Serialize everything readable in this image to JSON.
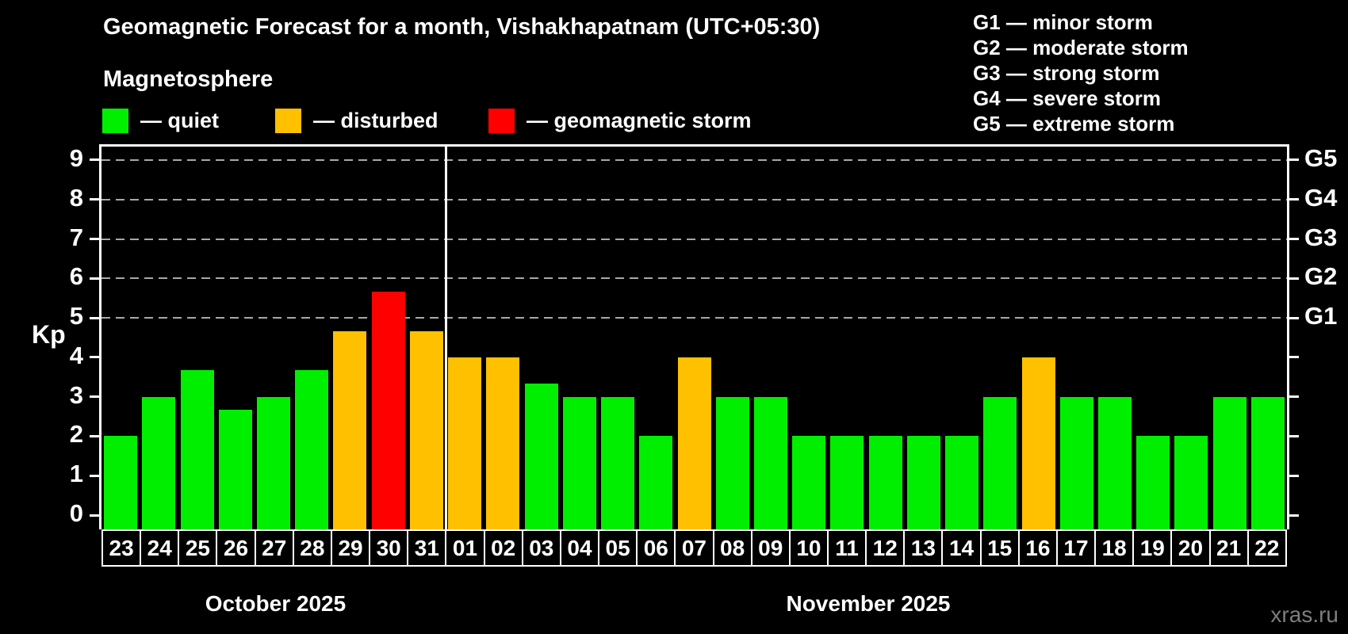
{
  "subtitle": "Magnetosphere",
  "legend": {
    "items": [
      {
        "key": "quiet",
        "label": "— quiet",
        "color": "#00ee00"
      },
      {
        "key": "disturbed",
        "label": "— disturbed",
        "color": "#ffc000"
      },
      {
        "key": "storm",
        "label": "— geomagnetic storm",
        "color": "#ff0000"
      }
    ]
  },
  "storm_scale": [
    "G1 — minor storm",
    "G2 — moderate storm",
    "G3 — strong storm",
    "G4 — severe storm",
    "G5 — extreme storm"
  ],
  "watermark": "xras.ru",
  "colors": {
    "background": "#000000",
    "text": "#ffffff",
    "gridline": "#a8a8a8",
    "watermark": "#7e7e7e"
  },
  "chart_data": {
    "type": "bar",
    "title": "Geomagnetic Forecast for a month, Vishakhapatnam (UTC+05:30)",
    "xlabel": "",
    "ylabel": "Kp",
    "ylim": [
      0,
      9.35
    ],
    "yticks": [
      0,
      1,
      2,
      3,
      4,
      5,
      6,
      7,
      8,
      9
    ],
    "gridlines": [
      5,
      6,
      7,
      8,
      9
    ],
    "grid": "dashed horizontal lines at storm levels only",
    "legend_position": "top-left",
    "right_axis_labels": [
      {
        "label": "G1",
        "kp": 5
      },
      {
        "label": "G2",
        "kp": 6
      },
      {
        "label": "G3",
        "kp": 7
      },
      {
        "label": "G4",
        "kp": 8
      },
      {
        "label": "G5",
        "kp": 9
      }
    ],
    "categories": [
      "23",
      "24",
      "25",
      "26",
      "27",
      "28",
      "29",
      "30",
      "31",
      "01",
      "02",
      "03",
      "04",
      "05",
      "06",
      "07",
      "08",
      "09",
      "10",
      "11",
      "12",
      "13",
      "14",
      "15",
      "16",
      "17",
      "18",
      "19",
      "20",
      "21",
      "22"
    ],
    "values": [
      2,
      3,
      3.67,
      2.67,
      3,
      3.67,
      4.67,
      5.67,
      4.67,
      4,
      4,
      3.33,
      3,
      3,
      2,
      4,
      3,
      3,
      2,
      2,
      2,
      2,
      2,
      3,
      4,
      3,
      3,
      2,
      2,
      3,
      3
    ],
    "statuses": [
      "quiet",
      "quiet",
      "quiet",
      "quiet",
      "quiet",
      "quiet",
      "disturbed",
      "storm",
      "disturbed",
      "disturbed",
      "disturbed",
      "quiet",
      "quiet",
      "quiet",
      "quiet",
      "disturbed",
      "quiet",
      "quiet",
      "quiet",
      "quiet",
      "quiet",
      "quiet",
      "quiet",
      "quiet",
      "disturbed",
      "quiet",
      "quiet",
      "quiet",
      "quiet",
      "quiet",
      "quiet"
    ],
    "months": [
      {
        "label": "October 2025",
        "count": 9
      },
      {
        "label": "November 2025",
        "count": 22
      }
    ]
  }
}
